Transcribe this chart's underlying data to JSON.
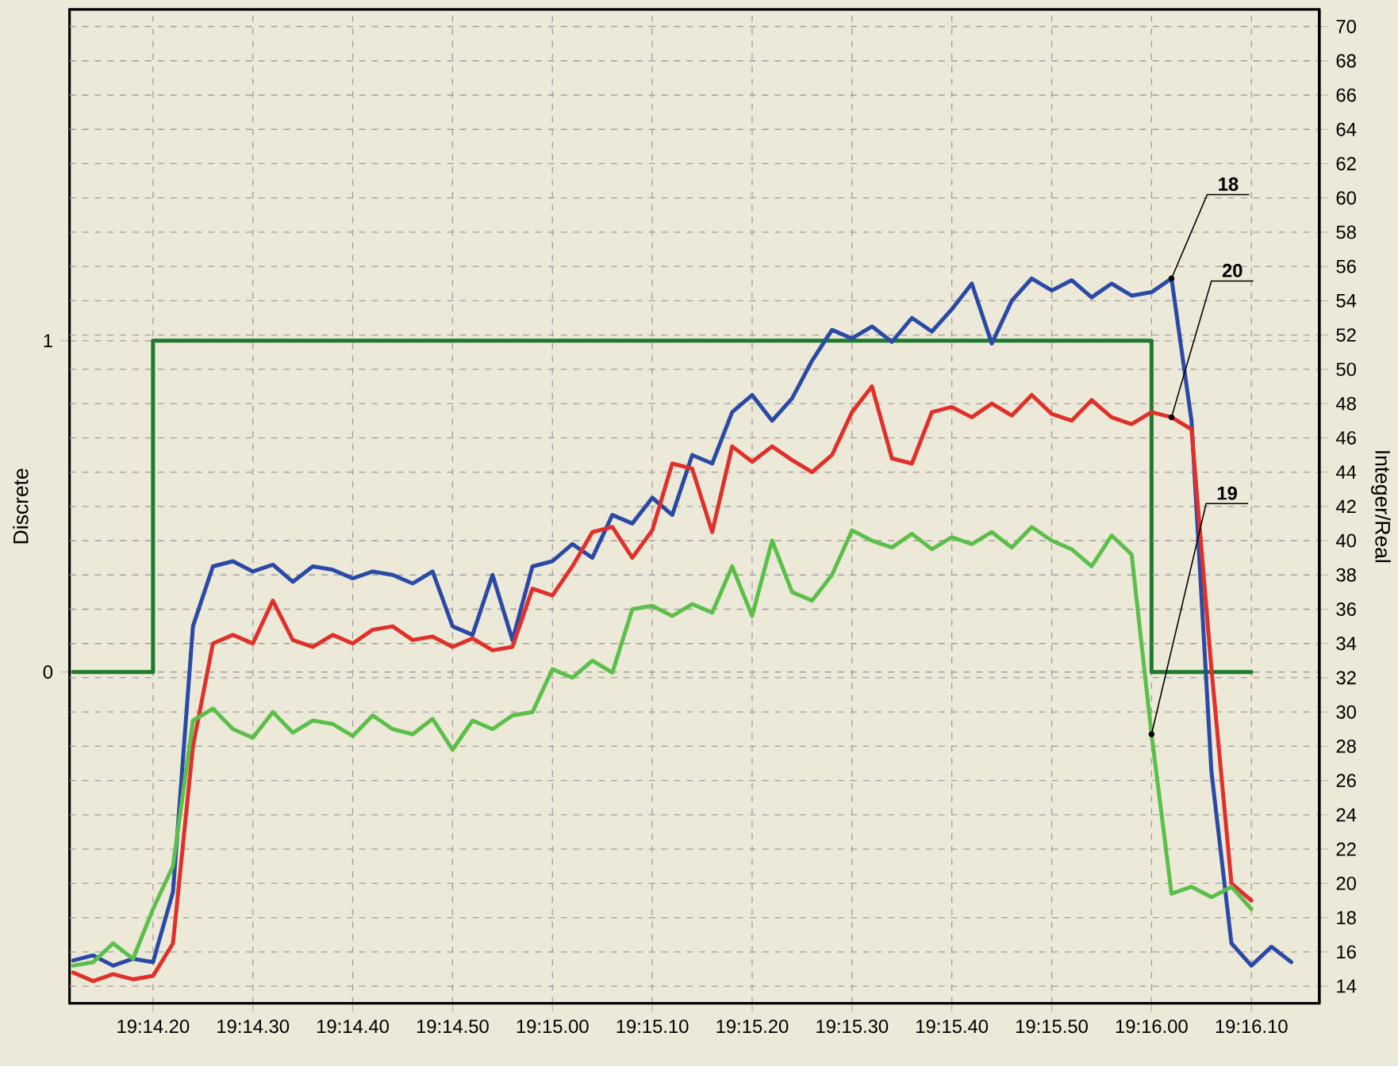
{
  "chart_data": {
    "type": "line",
    "ylabel": "Discrete",
    "y2label": "Integer/Real",
    "categories": [
      null,
      null,
      null,
      null,
      "19:14.20",
      null,
      null,
      null,
      null,
      "19:14.30",
      null,
      null,
      null,
      null,
      "19:14.40",
      null,
      null,
      null,
      null,
      "19:14.50",
      null,
      null,
      null,
      null,
      "19:15.00",
      null,
      null,
      null,
      null,
      "19:15.10",
      null,
      null,
      null,
      null,
      "19:15.20",
      null,
      null,
      null,
      null,
      "19:15.30",
      null,
      null,
      null,
      null,
      "19:15.40",
      null,
      null,
      null,
      null,
      "19:15.50",
      null,
      null,
      null,
      null,
      "19:16.00",
      null,
      null,
      null,
      null,
      "19:16.10",
      null,
      null
    ],
    "ylim": [
      -1,
      2
    ],
    "yticks": [
      0,
      1
    ],
    "y2lim": [
      13,
      71
    ],
    "y2ticks": [
      14,
      16,
      18,
      20,
      22,
      24,
      26,
      28,
      30,
      32,
      34,
      36,
      38,
      40,
      42,
      44,
      46,
      48,
      50,
      52,
      54,
      56,
      58,
      60,
      62,
      64,
      66,
      68,
      70
    ],
    "grid": true,
    "series": [
      {
        "type": "step",
        "color": "#1f7a2e",
        "values": [
          0,
          0,
          0,
          0,
          1,
          1,
          1,
          1,
          1,
          1,
          1,
          1,
          1,
          1,
          1,
          1,
          1,
          1,
          1,
          1,
          1,
          1,
          1,
          1,
          1,
          1,
          1,
          1,
          1,
          1,
          1,
          1,
          1,
          1,
          1,
          1,
          1,
          1,
          1,
          1,
          1,
          1,
          1,
          1,
          1,
          1,
          1,
          1,
          1,
          1,
          1,
          1,
          1,
          1,
          0,
          0,
          0,
          0,
          0,
          0,
          null,
          null
        ]
      },
      {
        "name": "18",
        "color": "#2b4aa6",
        "axis": "y2",
        "values": [
          15.5,
          15.8,
          15.2,
          15.6,
          15.4,
          19.5,
          35,
          38.5,
          38.8,
          38.2,
          38.6,
          37.6,
          38.5,
          38.3,
          37.8,
          38.2,
          38,
          37.5,
          38.2,
          35,
          34.5,
          38,
          34.2,
          38.5,
          38.8,
          39.8,
          39,
          41.5,
          41,
          42.5,
          41.5,
          45,
          44.5,
          47.5,
          48.5,
          47,
          48.3,
          50.5,
          52.3,
          51.8,
          52.5,
          51.6,
          53,
          52.2,
          53.5,
          55,
          51.5,
          54,
          55.3,
          54.6,
          55.2,
          54.2,
          55,
          54.3,
          54.5,
          55.3,
          47,
          26.5,
          16.5,
          15.2,
          16.3,
          15.4
        ]
      },
      {
        "name": "20",
        "color": "#e0302a",
        "axis": "y2",
        "values": [
          14.8,
          14.3,
          14.7,
          14.4,
          14.6,
          16.5,
          28,
          34,
          34.5,
          34,
          36.5,
          34.2,
          33.8,
          34.5,
          34,
          34.8,
          35,
          34.2,
          34.4,
          33.8,
          34.3,
          33.6,
          33.8,
          37.2,
          36.8,
          38.5,
          40.5,
          40.8,
          39,
          40.6,
          44.5,
          44.2,
          40.5,
          45.5,
          44.6,
          45.5,
          44.7,
          44,
          45,
          47.5,
          49,
          44.8,
          44.5,
          47.5,
          47.8,
          47.2,
          48,
          47.3,
          48.5,
          47.4,
          47,
          48.2,
          47.2,
          46.8,
          47.5,
          47.2,
          46.5,
          32.5,
          20,
          19,
          null,
          null
        ]
      },
      {
        "name": "19",
        "color": "#5cbf4a",
        "axis": "y2",
        "values": [
          15.2,
          15.4,
          16.5,
          15.6,
          18.5,
          21,
          29.5,
          30.2,
          29,
          28.5,
          30,
          28.8,
          29.5,
          29.3,
          28.6,
          29.8,
          29,
          28.7,
          29.6,
          27.8,
          29.5,
          29,
          29.8,
          30,
          32.5,
          32,
          33,
          32.3,
          36,
          36.2,
          35.6,
          36.3,
          35.8,
          38.5,
          35.6,
          40,
          37,
          36.5,
          38,
          40.6,
          40,
          39.6,
          40.4,
          39.5,
          40.2,
          39.8,
          40.5,
          39.6,
          40.8,
          40,
          39.5,
          38.5,
          40.3,
          39.2,
          28.7,
          19.4,
          19.8,
          19.2,
          19.8,
          18.5,
          null,
          null
        ]
      }
    ]
  }
}
